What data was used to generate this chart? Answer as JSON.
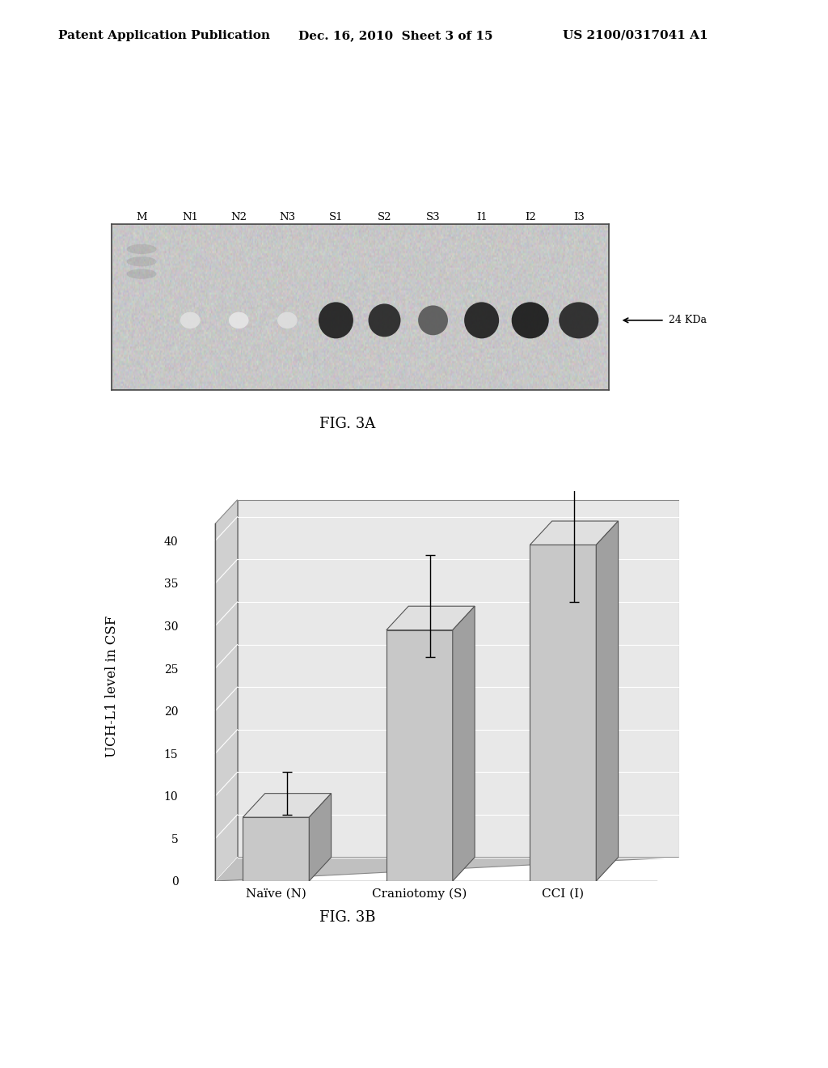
{
  "header_left": "Patent Application Publication",
  "header_mid": "Dec. 16, 2010  Sheet 3 of 15",
  "header_right": "US 2100/0317041 A1",
  "fig3a_label": "FIG. 3A",
  "fig3b_label": "FIG. 3B",
  "gel_lane_labels": [
    "M",
    "N1",
    "N2",
    "N3",
    "S1",
    "S2",
    "S3",
    "I1",
    "I2",
    "I3"
  ],
  "gel_annotation": "24 KDa",
  "bar_categories": [
    "Naïve (N)",
    "Craniotomy (S)",
    "CCI (I)"
  ],
  "bar_values": [
    7.5,
    29.5,
    39.5
  ],
  "bar_errors": [
    2.5,
    6.0,
    9.5
  ],
  "bar_color_front": "#c8c8c8",
  "bar_color_top": "#e0e0e0",
  "bar_color_side": "#a0a0a0",
  "bar_edge_color": "#555555",
  "ylabel": "UCH-L1 level in CSF",
  "ylim": [
    0,
    42
  ],
  "yticks": [
    0,
    5,
    10,
    15,
    20,
    25,
    30,
    35,
    40
  ],
  "background_color": "#ffffff",
  "plot_bg_color": "#dcdcdc",
  "back_wall_color": "#e8e8e8",
  "grid_color": "#ffffff",
  "floor_color": "#c0c0c0",
  "header_font_size": 11,
  "axis_font_size": 11,
  "tick_font_size": 10
}
